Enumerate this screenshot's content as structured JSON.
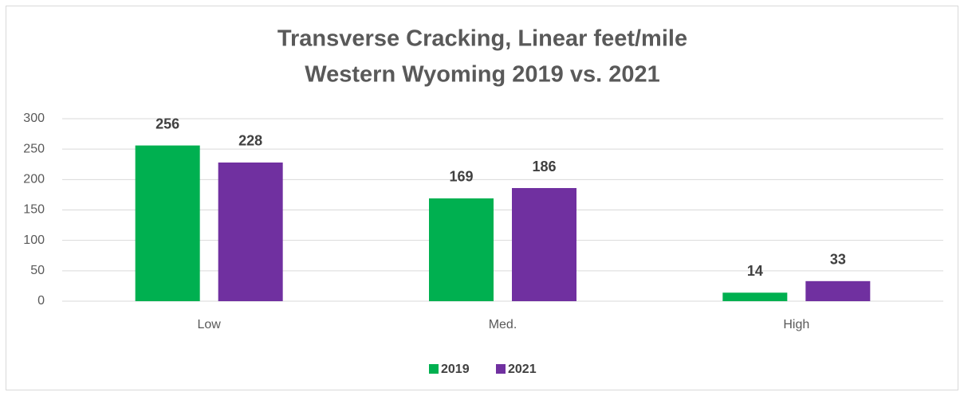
{
  "chart_data": {
    "type": "bar",
    "title": [
      "Transverse Cracking, Linear feet/mile",
      "Western Wyoming 2019 vs. 2021"
    ],
    "categories": [
      "Low",
      "Med.",
      "High"
    ],
    "series": [
      {
        "name": "2019",
        "color": "#00b050",
        "values": [
          256,
          169,
          14
        ]
      },
      {
        "name": "2021",
        "color": "#7030a0",
        "values": [
          228,
          186,
          33
        ]
      }
    ],
    "ylim": [
      0,
      300
    ],
    "yticks": [
      0,
      50,
      100,
      150,
      200,
      250,
      300
    ],
    "grid": true,
    "legend": "bottom"
  }
}
